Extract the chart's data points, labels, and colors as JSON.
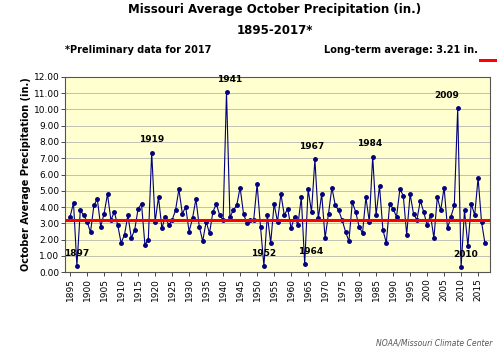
{
  "title_line1": "Missouri Average October Precipitation (in.)",
  "title_line2": "1895-2017*",
  "ylabel": "October Average Precipitation (in.)",
  "long_term_avg": 3.21,
  "long_term_label": "Long-term average: 3.21 in.",
  "prelim_label": "*Preliminary data for 2017",
  "credit": "NOAA/Missouri Climate Center",
  "ylim": [
    0.0,
    12.0
  ],
  "ytick_vals": [
    0.0,
    1.0,
    2.0,
    3.0,
    4.0,
    5.0,
    6.0,
    7.0,
    8.0,
    9.0,
    10.0,
    11.0,
    12.0
  ],
  "xticks": [
    1895,
    1900,
    1905,
    1910,
    1915,
    1920,
    1925,
    1930,
    1935,
    1940,
    1945,
    1950,
    1955,
    1960,
    1965,
    1970,
    1975,
    1980,
    1985,
    1990,
    1995,
    2000,
    2005,
    2010,
    2015
  ],
  "background_color": "#FFFFD0",
  "line_color": "#000080",
  "avg_line_color": "#FF0000",
  "annotations": {
    "1897": {
      "year": 1897,
      "val": 0.38,
      "ox": 0,
      "oy": 6
    },
    "1919": {
      "year": 1919,
      "val": 7.35,
      "ox": 0,
      "oy": 6
    },
    "1941": {
      "year": 1941,
      "val": 11.05,
      "ox": 2,
      "oy": 6
    },
    "1952": {
      "year": 1952,
      "val": 0.39,
      "ox": 0,
      "oy": 6
    },
    "1964": {
      "year": 1964,
      "val": 0.5,
      "ox": 4,
      "oy": 6
    },
    "1967": {
      "year": 1967,
      "val": 6.93,
      "ox": -2,
      "oy": 6
    },
    "1984": {
      "year": 1984,
      "val": 7.1,
      "ox": -2,
      "oy": 6
    },
    "2009": {
      "year": 2009,
      "val": 10.06,
      "ox": -8,
      "oy": 6
    },
    "2010": {
      "year": 2010,
      "val": 0.31,
      "ox": 3,
      "oy": 6
    }
  },
  "years": [
    1895,
    1896,
    1897,
    1898,
    1899,
    1900,
    1901,
    1902,
    1903,
    1904,
    1905,
    1906,
    1907,
    1908,
    1909,
    1910,
    1911,
    1912,
    1913,
    1914,
    1915,
    1916,
    1917,
    1918,
    1919,
    1920,
    1921,
    1922,
    1923,
    1924,
    1925,
    1926,
    1927,
    1928,
    1929,
    1930,
    1931,
    1932,
    1933,
    1934,
    1935,
    1936,
    1937,
    1938,
    1939,
    1940,
    1941,
    1942,
    1943,
    1944,
    1945,
    1946,
    1947,
    1948,
    1949,
    1950,
    1951,
    1952,
    1953,
    1954,
    1955,
    1956,
    1957,
    1958,
    1959,
    1960,
    1961,
    1962,
    1963,
    1964,
    1965,
    1966,
    1967,
    1968,
    1969,
    1970,
    1971,
    1972,
    1973,
    1974,
    1975,
    1976,
    1977,
    1978,
    1979,
    1980,
    1981,
    1982,
    1983,
    1984,
    1985,
    1986,
    1987,
    1988,
    1989,
    1990,
    1991,
    1992,
    1993,
    1994,
    1995,
    1996,
    1997,
    1998,
    1999,
    2000,
    2001,
    2002,
    2003,
    2004,
    2005,
    2006,
    2007,
    2008,
    2009,
    2010,
    2011,
    2012,
    2013,
    2014,
    2015,
    2016,
    2017
  ],
  "values": [
    3.41,
    4.26,
    0.38,
    3.8,
    3.5,
    3.1,
    2.45,
    4.1,
    4.5,
    2.8,
    3.6,
    4.8,
    3.2,
    3.7,
    2.9,
    1.8,
    2.3,
    3.5,
    2.1,
    2.6,
    3.9,
    4.2,
    1.7,
    2.0,
    7.35,
    3.1,
    4.6,
    2.7,
    3.4,
    2.9,
    3.2,
    3.8,
    5.1,
    3.6,
    4.0,
    2.5,
    3.3,
    4.5,
    2.8,
    1.9,
    3.1,
    2.4,
    3.7,
    4.2,
    3.5,
    3.2,
    11.05,
    3.4,
    3.8,
    4.1,
    5.2,
    3.6,
    3.0,
    3.2,
    3.2,
    5.4,
    2.8,
    0.39,
    3.5,
    1.8,
    4.2,
    3.1,
    4.8,
    3.5,
    3.9,
    2.7,
    3.4,
    2.9,
    4.6,
    0.5,
    5.1,
    3.7,
    6.93,
    3.3,
    4.8,
    2.1,
    3.6,
    5.2,
    4.1,
    3.8,
    3.2,
    2.5,
    1.9,
    4.3,
    3.7,
    2.8,
    2.4,
    4.6,
    3.1,
    7.1,
    3.5,
    5.3,
    2.6,
    1.8,
    4.2,
    3.9,
    3.4,
    5.1,
    4.7,
    2.3,
    4.8,
    3.6,
    3.2,
    4.4,
    3.7,
    2.9,
    3.5,
    2.1,
    4.6,
    3.8,
    5.2,
    2.7,
    3.4,
    4.1,
    10.06,
    0.31,
    3.8,
    1.6,
    4.2,
    3.5,
    5.8,
    3.1,
    1.8
  ]
}
